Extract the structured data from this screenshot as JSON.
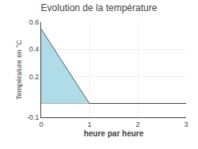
{
  "chart_data": {
    "type": "area",
    "title": "Evolution de la température",
    "xlabel": "heure par heure",
    "ylabel": "Température en °C",
    "x": [
      0,
      1
    ],
    "values": [
      0.55,
      0.0
    ],
    "color": "#b0dce8",
    "xlim": [
      0,
      3
    ],
    "ylim": [
      -0.1,
      0.6
    ],
    "xticks": [
      0,
      1,
      2,
      3
    ],
    "yticks": [
      -0.1,
      0.2,
      0.4,
      0.6
    ],
    "grid": true
  }
}
